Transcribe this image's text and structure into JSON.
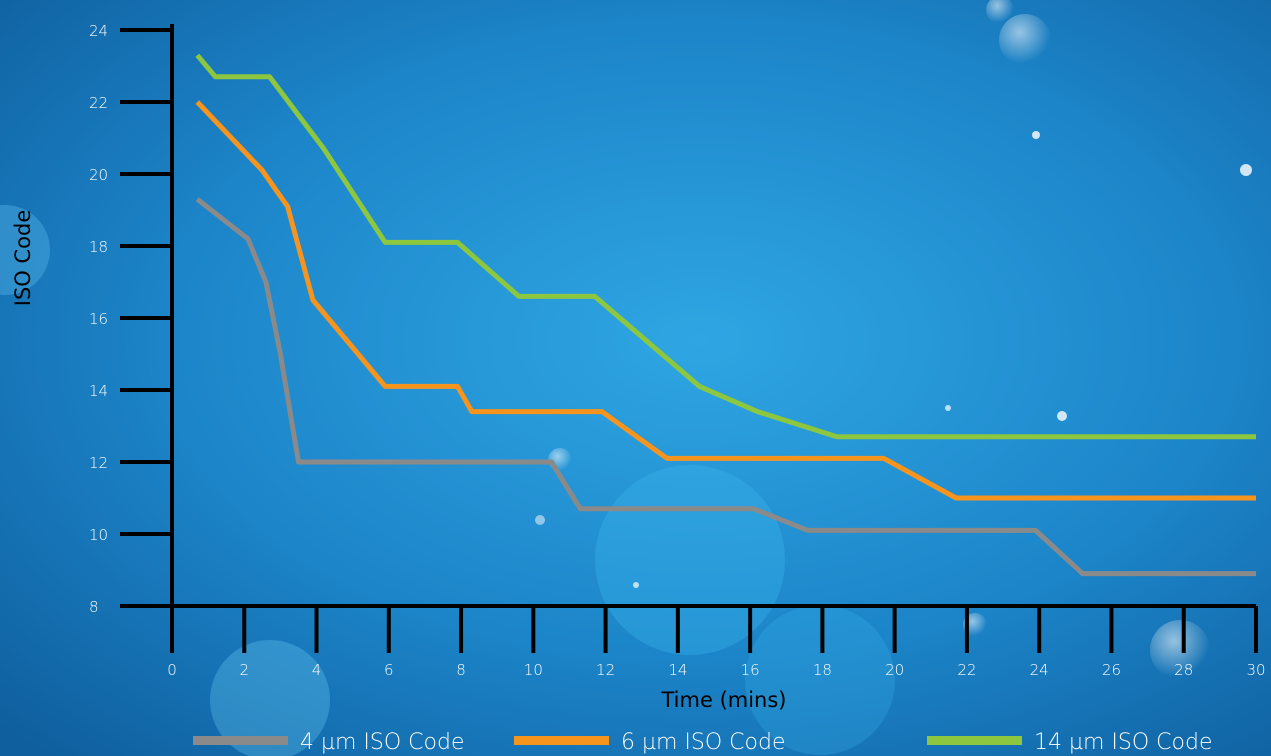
{
  "chart_data": {
    "type": "line",
    "xlabel": "Time (mins)",
    "ylabel": "ISO Code",
    "xlim": [
      0,
      30
    ],
    "ylim": [
      8,
      24
    ],
    "x_ticks": [
      0,
      2,
      4,
      6,
      8,
      10,
      12,
      14,
      16,
      18,
      20,
      22,
      24,
      26,
      28,
      30
    ],
    "y_ticks": [
      8,
      10,
      12,
      14,
      16,
      18,
      20,
      22,
      24
    ],
    "grid": false,
    "legend_position": "bottom",
    "series": [
      {
        "name": "4 µm ISO Code",
        "color": "#8a8a8a",
        "points": [
          [
            0.7,
            19.3
          ],
          [
            2.1,
            18.2
          ],
          [
            2.6,
            17.0
          ],
          [
            3.0,
            15.0
          ],
          [
            3.5,
            12.0
          ],
          [
            10.5,
            12.0
          ],
          [
            11.3,
            10.7
          ],
          [
            16.1,
            10.7
          ],
          [
            17.6,
            10.1
          ],
          [
            23.9,
            10.1
          ],
          [
            25.2,
            8.9
          ],
          [
            30.0,
            8.9
          ]
        ]
      },
      {
        "name": "6 µm ISO Code",
        "color": "#f7941d",
        "points": [
          [
            0.7,
            22.0
          ],
          [
            2.5,
            20.1
          ],
          [
            3.2,
            19.1
          ],
          [
            3.9,
            16.5
          ],
          [
            5.9,
            14.1
          ],
          [
            7.9,
            14.1
          ],
          [
            8.3,
            13.4
          ],
          [
            11.9,
            13.4
          ],
          [
            13.7,
            12.1
          ],
          [
            19.7,
            12.1
          ],
          [
            21.7,
            11.0
          ],
          [
            30.0,
            11.0
          ]
        ]
      },
      {
        "name": "14 µm ISO Code",
        "color": "#8dc63f",
        "points": [
          [
            0.7,
            23.3
          ],
          [
            1.2,
            22.7
          ],
          [
            2.7,
            22.7
          ],
          [
            4.2,
            20.7
          ],
          [
            5.9,
            18.1
          ],
          [
            7.9,
            18.1
          ],
          [
            9.6,
            16.6
          ],
          [
            11.7,
            16.6
          ],
          [
            14.6,
            14.1
          ],
          [
            16.2,
            13.4
          ],
          [
            18.4,
            12.7
          ],
          [
            30.0,
            12.7
          ]
        ]
      }
    ]
  }
}
